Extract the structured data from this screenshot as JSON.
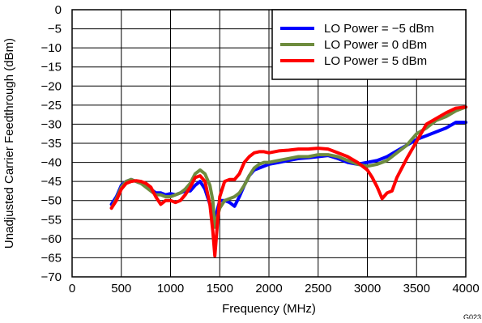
{
  "chart_data": {
    "type": "line",
    "xlabel": "Frequency (MHz)",
    "ylabel": "Unadjusted Carrier Feedthrough (dBm)",
    "xlim": [
      0,
      4000
    ],
    "ylim": [
      -70,
      0
    ],
    "xticks": [
      0,
      500,
      1000,
      1500,
      2000,
      2500,
      3000,
      3500,
      4000
    ],
    "yticks": [
      0,
      -5,
      -10,
      -15,
      -20,
      -25,
      -30,
      -35,
      -40,
      -45,
      -50,
      -55,
      -60,
      -65,
      -70
    ],
    "ytick_labels": [
      "0",
      "−5",
      "−10",
      "−15",
      "−20",
      "−25",
      "−30",
      "−35",
      "−40",
      "−45",
      "−50",
      "−55",
      "−60",
      "−65",
      "−70"
    ],
    "grid": true,
    "legend_position": "top-right",
    "figure_id": "G023",
    "series": [
      {
        "name": "LO Power = −5 dBm",
        "color": "#0000ff",
        "x": [
          400,
          450,
          500,
          550,
          600,
          650,
          700,
          750,
          800,
          850,
          900,
          950,
          1000,
          1050,
          1100,
          1150,
          1200,
          1250,
          1300,
          1350,
          1400,
          1430,
          1450,
          1480,
          1500,
          1550,
          1600,
          1650,
          1700,
          1750,
          1800,
          1850,
          1900,
          1950,
          2000,
          2100,
          2200,
          2300,
          2400,
          2500,
          2600,
          2700,
          2800,
          2900,
          3000,
          3100,
          3200,
          3300,
          3400,
          3500,
          3600,
          3700,
          3800,
          3900,
          4000
        ],
        "y": [
          -51,
          -49,
          -46,
          -45,
          -44.5,
          -45,
          -45.5,
          -46,
          -47,
          -48,
          -48,
          -48.5,
          -48.2,
          -48.5,
          -48,
          -47.5,
          -47.5,
          -46,
          -45,
          -47,
          -51,
          -54,
          -55,
          -52,
          -50,
          -50,
          -50.5,
          -51.5,
          -49,
          -46,
          -43.5,
          -42,
          -41.5,
          -41,
          -40.5,
          -40,
          -39.5,
          -39,
          -38.8,
          -38.5,
          -38.2,
          -39,
          -40,
          -40.5,
          -40,
          -39.5,
          -38.5,
          -37,
          -35.5,
          -34,
          -33,
          -32,
          -31,
          -29.5,
          -29.5
        ]
      },
      {
        "name": "LO Power = 0 dBm",
        "color": "#6e8c3e",
        "x": [
          400,
          450,
          500,
          550,
          600,
          650,
          700,
          750,
          800,
          850,
          900,
          950,
          1000,
          1050,
          1100,
          1150,
          1200,
          1250,
          1300,
          1350,
          1400,
          1430,
          1450,
          1480,
          1500,
          1550,
          1600,
          1650,
          1700,
          1750,
          1800,
          1850,
          1900,
          1950,
          2000,
          2100,
          2200,
          2300,
          2400,
          2500,
          2600,
          2700,
          2800,
          2900,
          3000,
          3100,
          3200,
          3300,
          3400,
          3500,
          3600,
          3700,
          3800,
          3900,
          4000
        ],
        "y": [
          -52,
          -49.5,
          -46.5,
          -45,
          -44.5,
          -45,
          -45.5,
          -46.5,
          -47.5,
          -48.5,
          -48.5,
          -49,
          -49,
          -48.5,
          -48,
          -47,
          -45.5,
          -43,
          -42,
          -43,
          -46,
          -50,
          -57,
          -54,
          -52,
          -50,
          -49.5,
          -49,
          -48,
          -46,
          -43.5,
          -41.5,
          -40.5,
          -40,
          -40,
          -39.5,
          -39,
          -38.5,
          -38.5,
          -38,
          -38,
          -38.5,
          -39.5,
          -40.5,
          -41,
          -40.5,
          -39.5,
          -37.5,
          -35.5,
          -32.5,
          -31,
          -29,
          -28,
          -26.5,
          -25.5
        ]
      },
      {
        "name": "LO Power = 5 dBm",
        "color": "#ff0000",
        "x": [
          400,
          450,
          500,
          550,
          600,
          650,
          700,
          750,
          800,
          850,
          900,
          950,
          1000,
          1050,
          1100,
          1150,
          1200,
          1250,
          1300,
          1350,
          1400,
          1430,
          1450,
          1480,
          1500,
          1550,
          1600,
          1650,
          1700,
          1750,
          1800,
          1850,
          1900,
          1950,
          2000,
          2100,
          2200,
          2300,
          2400,
          2500,
          2600,
          2700,
          2800,
          2900,
          3000,
          3050,
          3100,
          3150,
          3200,
          3250,
          3300,
          3400,
          3500,
          3600,
          3700,
          3800,
          3900,
          4000
        ],
        "y": [
          -52,
          -50,
          -47,
          -45.5,
          -45,
          -44.8,
          -45,
          -45.5,
          -46.5,
          -49,
          -51,
          -50,
          -50,
          -50.5,
          -50,
          -48.5,
          -46.5,
          -44,
          -43.5,
          -45,
          -51,
          -58,
          -64.5,
          -55,
          -49,
          -45,
          -44.5,
          -44.5,
          -43,
          -40,
          -38.5,
          -37.5,
          -37.2,
          -37.2,
          -37.5,
          -37,
          -36.8,
          -36.5,
          -36.5,
          -36.3,
          -36.5,
          -37.5,
          -38.5,
          -40,
          -42,
          -44,
          -46.5,
          -49.5,
          -48,
          -47.5,
          -44,
          -39,
          -34.5,
          -30,
          -28.5,
          -27,
          -25.8,
          -25.5
        ]
      }
    ]
  }
}
